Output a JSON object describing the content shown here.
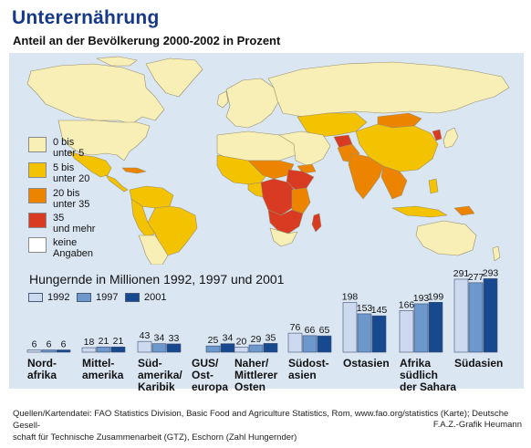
{
  "header": {
    "title": "Unterernährung",
    "subtitle": "Anteil an der Bevölkerung 2000-2002 in Prozent"
  },
  "map": {
    "legend": [
      {
        "label": "0 bis\nunter 5",
        "color": "#f7efb6"
      },
      {
        "label": "5 bis\nunter 20",
        "color": "#f3c200"
      },
      {
        "label": "20 bis\nunter 35",
        "color": "#ec8400"
      },
      {
        "label": "35\nund mehr",
        "color": "#d93a22"
      },
      {
        "label": "keine\nAngaben",
        "color": "#ffffff"
      }
    ],
    "ocean_color": "#dbe6f3",
    "border_color": "#9a8f6a"
  },
  "chart_data": {
    "type": "bar",
    "title": "Hungernde in Millionen 1992, 1997 und 2001",
    "categories": [
      "Nord-\nafrika",
      "Mittel-\namerika",
      "Süd-\namerika/\nKaribik",
      "GUS/\nOst-\neuropa",
      "Naher/\nMittlerer\nOsten",
      "Südost-\nasien",
      "Ostasien",
      "Afrika\nsüdlich\nder Sahara",
      "Südasien"
    ],
    "series": [
      {
        "name": "1992",
        "color": "#cdd9ee",
        "values": [
          6,
          18,
          43,
          null,
          20,
          76,
          198,
          166,
          291
        ]
      },
      {
        "name": "1997",
        "color": "#6c98cc",
        "values": [
          6,
          21,
          34,
          25,
          29,
          66,
          153,
          193,
          277
        ]
      },
      {
        "name": "2001",
        "color": "#17498f",
        "values": [
          6,
          21,
          33,
          34,
          35,
          65,
          145,
          199,
          293
        ]
      }
    ],
    "value_labels": [
      [
        "6",
        "6",
        "6"
      ],
      [
        "18",
        "21",
        "21"
      ],
      [
        "43",
        "34",
        "33"
      ],
      [
        "",
        "25",
        "34"
      ],
      [
        "20",
        "29",
        "35"
      ],
      [
        "76",
        "66",
        "65"
      ],
      [
        "198",
        "153",
        "145"
      ],
      [
        "166",
        "193",
        "199"
      ],
      [
        "291",
        "277",
        "293"
      ]
    ]
  },
  "footer": {
    "source": "Quellen/Kartendatei: FAO Statistics Division, Basic Food and Agriculture Statistics, Rom, www.fao.org/statistics (Karte); Deutsche Gesell-\nschaft für Technische Zusammenarbeit (GTZ), Eschorn (Zahl Hungernder)",
    "credit": "F.A.Z.-Grafik Heumann"
  }
}
